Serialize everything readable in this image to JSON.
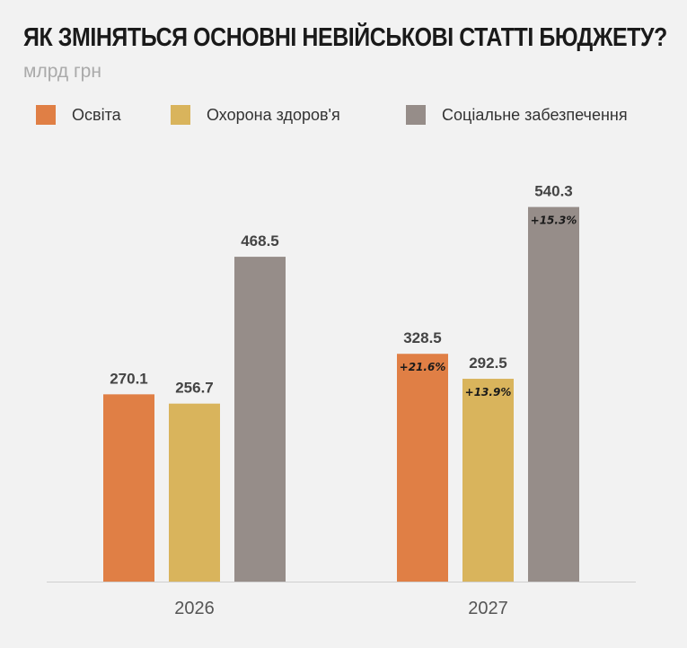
{
  "title": "ЯК ЗМІНЯТЬСЯ ОСНОВНІ НЕВІЙСЬКОВІ СТАТТІ БЮДЖЕТУ?",
  "subtitle": "млрд грн",
  "colors": {
    "background": "#f2f2f2",
    "education": "#e07f45",
    "health": "#d9b45c",
    "social": "#968d89"
  },
  "legend": [
    {
      "label": "Освіта",
      "color": "#e07f45"
    },
    {
      "label": "Охорона здоров'я",
      "color": "#d9b45c"
    },
    {
      "label": "Соціальне забезпечення",
      "color": "#968d89"
    }
  ],
  "chart_data": {
    "type": "bar",
    "categories": [
      "2026",
      "2027"
    ],
    "series": [
      {
        "name": "Освіта",
        "values": [
          270.1,
          328.5
        ],
        "labels": [
          "270.1",
          "328.5"
        ],
        "changes": [
          "",
          "+21.6%"
        ]
      },
      {
        "name": "Охорона здоров'я",
        "values": [
          256.7,
          292.5
        ],
        "labels": [
          "256.7",
          "292.5"
        ],
        "changes": [
          "",
          "+13.9%"
        ]
      },
      {
        "name": "Соціальне забезпечення",
        "values": [
          468.5,
          540.3
        ],
        "labels": [
          "468.5",
          "540.3"
        ],
        "changes": [
          "",
          "+15.3%"
        ]
      }
    ],
    "title": "ЯК ЗМІНЯТЬСЯ ОСНОВНІ НЕВІЙСЬКОВІ СТАТТІ БЮДЖЕТУ?",
    "ylabel": "млрд грн",
    "ylim": [
      0,
      600
    ],
    "grid": false,
    "legend_position": "top-left"
  }
}
